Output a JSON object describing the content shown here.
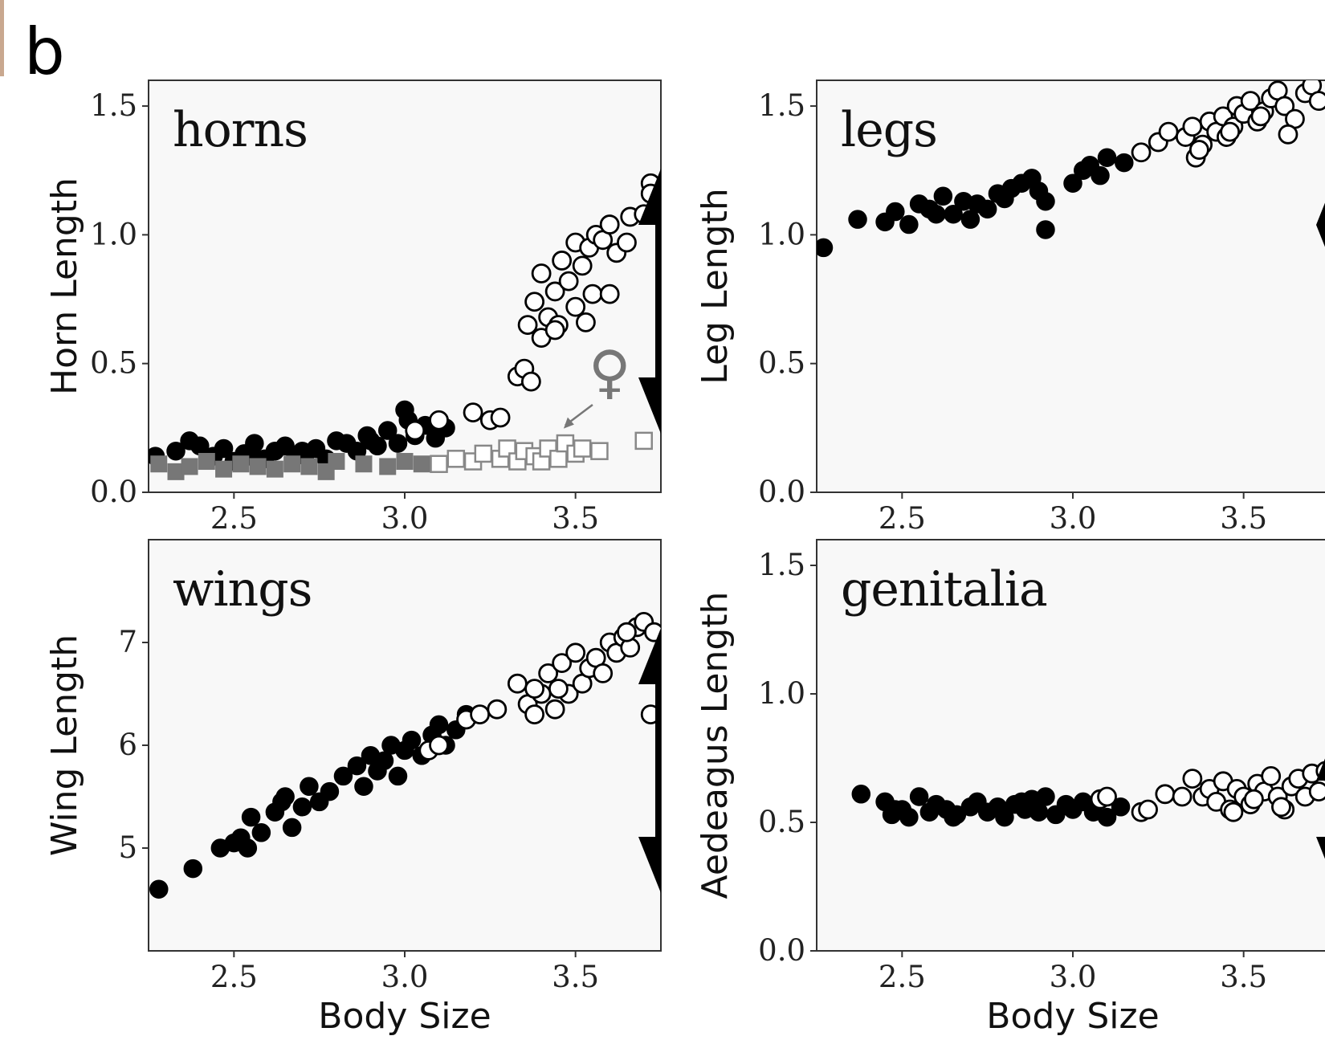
{
  "figure": {
    "panel_label": "b"
  },
  "chart_data": [
    {
      "type": "scatter",
      "title": "horns",
      "xlabel": "",
      "ylabel": "Horn Length",
      "xlim": [
        2.25,
        3.75
      ],
      "ylim": [
        0.0,
        1.6
      ],
      "xticks": [
        "2.5",
        "3.0",
        "3.5"
      ],
      "yticks": [
        "0.0",
        "0.5",
        "1.0",
        "1.5"
      ],
      "xtick_values": [
        2.5,
        3.0,
        3.5
      ],
      "ytick_values": [
        0.0,
        0.5,
        1.0,
        1.5
      ],
      "annotation": "♀",
      "arrow": "double-headed, right edge",
      "series": [
        {
          "marker": "filled-circle",
          "x": [
            2.27,
            2.33,
            2.37,
            2.4,
            2.44,
            2.47,
            2.5,
            2.53,
            2.56,
            2.59,
            2.62,
            2.65,
            2.68,
            2.71,
            2.74,
            2.77,
            2.8,
            2.83,
            2.86,
            2.89,
            2.92,
            2.95,
            2.98,
            3.0,
            3.03,
            3.06,
            3.09,
            3.12,
            2.55,
            2.7,
            2.9,
            3.01
          ],
          "y": [
            0.14,
            0.16,
            0.2,
            0.18,
            0.14,
            0.17,
            0.12,
            0.15,
            0.19,
            0.13,
            0.16,
            0.18,
            0.14,
            0.15,
            0.17,
            0.13,
            0.2,
            0.19,
            0.16,
            0.22,
            0.18,
            0.24,
            0.19,
            0.32,
            0.22,
            0.26,
            0.21,
            0.25,
            0.14,
            0.16,
            0.2,
            0.28
          ]
        },
        {
          "marker": "open-circle",
          "x": [
            3.03,
            3.1,
            3.2,
            3.25,
            3.28,
            3.33,
            3.35,
            3.37,
            3.38,
            3.4,
            3.4,
            3.42,
            3.44,
            3.45,
            3.46,
            3.48,
            3.5,
            3.5,
            3.52,
            3.54,
            3.55,
            3.56,
            3.58,
            3.6,
            3.6,
            3.62,
            3.65,
            3.66,
            3.7,
            3.72,
            3.72,
            3.36,
            3.44,
            3.53
          ],
          "y": [
            0.24,
            0.28,
            0.31,
            0.28,
            0.29,
            0.45,
            0.48,
            0.43,
            0.74,
            0.6,
            0.85,
            0.68,
            0.78,
            0.65,
            0.9,
            0.82,
            0.97,
            0.72,
            0.88,
            0.95,
            0.77,
            1.0,
            0.98,
            0.77,
            1.04,
            0.93,
            0.97,
            1.07,
            1.08,
            1.2,
            1.16,
            0.65,
            0.63,
            0.66
          ]
        },
        {
          "marker": "filled-square",
          "x": [
            2.28,
            2.33,
            2.37,
            2.42,
            2.47,
            2.52,
            2.57,
            2.62,
            2.67,
            2.72,
            2.77,
            2.8,
            2.88,
            2.95,
            3.0,
            3.05
          ],
          "y": [
            0.11,
            0.08,
            0.1,
            0.12,
            0.09,
            0.11,
            0.1,
            0.09,
            0.11,
            0.1,
            0.08,
            0.12,
            0.11,
            0.1,
            0.12,
            0.11
          ]
        },
        {
          "marker": "open-square",
          "x": [
            3.1,
            3.15,
            3.2,
            3.23,
            3.28,
            3.3,
            3.33,
            3.35,
            3.38,
            3.4,
            3.42,
            3.45,
            3.47,
            3.5,
            3.52,
            3.57,
            3.7
          ],
          "y": [
            0.11,
            0.13,
            0.12,
            0.15,
            0.13,
            0.17,
            0.12,
            0.16,
            0.14,
            0.12,
            0.17,
            0.13,
            0.19,
            0.15,
            0.17,
            0.16,
            0.2
          ]
        }
      ]
    },
    {
      "type": "scatter",
      "title": "legs",
      "xlabel": "",
      "ylabel": "Leg Length",
      "xlim": [
        2.25,
        3.75
      ],
      "ylim": [
        0.0,
        1.6
      ],
      "xticks": [
        "2.5",
        "3.0",
        "3.5"
      ],
      "yticks": [
        "0.0",
        "0.5",
        "1.0",
        "1.5"
      ],
      "xtick_values": [
        2.5,
        3.0,
        3.5
      ],
      "ytick_values": [
        0.0,
        0.5,
        1.0,
        1.5
      ],
      "arrow": "double-headed, right edge",
      "series": [
        {
          "marker": "filled-circle",
          "x": [
            2.27,
            2.37,
            2.45,
            2.48,
            2.52,
            2.55,
            2.58,
            2.62,
            2.65,
            2.68,
            2.72,
            2.75,
            2.78,
            2.82,
            2.85,
            2.88,
            2.9,
            2.92,
            2.92,
            3.0,
            3.03,
            3.05,
            3.08,
            3.1,
            3.15,
            2.6,
            2.7,
            2.8
          ],
          "y": [
            0.95,
            1.06,
            1.05,
            1.09,
            1.04,
            1.12,
            1.1,
            1.15,
            1.08,
            1.13,
            1.12,
            1.1,
            1.16,
            1.18,
            1.2,
            1.22,
            1.17,
            1.02,
            1.13,
            1.2,
            1.25,
            1.27,
            1.23,
            1.3,
            1.28,
            1.08,
            1.06,
            1.14
          ]
        },
        {
          "marker": "open-circle",
          "x": [
            3.2,
            3.25,
            3.28,
            3.33,
            3.35,
            3.36,
            3.38,
            3.4,
            3.42,
            3.44,
            3.45,
            3.47,
            3.48,
            3.5,
            3.52,
            3.54,
            3.56,
            3.58,
            3.6,
            3.62,
            3.65,
            3.68,
            3.7,
            3.72,
            3.37,
            3.46,
            3.55,
            3.63
          ],
          "y": [
            1.32,
            1.36,
            1.4,
            1.38,
            1.42,
            1.3,
            1.35,
            1.44,
            1.4,
            1.46,
            1.38,
            1.42,
            1.5,
            1.47,
            1.52,
            1.44,
            1.48,
            1.53,
            1.56,
            1.5,
            1.45,
            1.55,
            1.58,
            1.52,
            1.33,
            1.4,
            1.46,
            1.39
          ]
        }
      ]
    },
    {
      "type": "scatter",
      "title": "wings",
      "xlabel": "Body Size",
      "ylabel": "Wing Length",
      "xlim": [
        2.25,
        3.75
      ],
      "ylim": [
        4.0,
        8.0
      ],
      "xticks": [
        "2.5",
        "3.0",
        "3.5"
      ],
      "yticks": [
        "5",
        "6",
        "7"
      ],
      "xtick_values": [
        2.5,
        3.0,
        3.5
      ],
      "ytick_values": [
        5,
        6,
        7
      ],
      "arrow": "double-headed, right edge",
      "series": [
        {
          "marker": "filled-circle",
          "x": [
            2.28,
            2.38,
            2.46,
            2.5,
            2.52,
            2.55,
            2.58,
            2.62,
            2.65,
            2.67,
            2.7,
            2.72,
            2.75,
            2.78,
            2.82,
            2.86,
            2.88,
            2.9,
            2.92,
            2.94,
            2.96,
            2.98,
            3.0,
            3.02,
            3.05,
            3.08,
            3.1,
            3.12,
            3.15,
            3.18,
            2.54,
            2.64
          ],
          "y": [
            4.6,
            4.8,
            5.0,
            5.05,
            5.1,
            5.3,
            5.15,
            5.35,
            5.5,
            5.2,
            5.4,
            5.6,
            5.45,
            5.55,
            5.7,
            5.8,
            5.6,
            5.9,
            5.75,
            5.85,
            6.0,
            5.7,
            5.95,
            6.05,
            5.9,
            6.1,
            6.2,
            6.0,
            6.15,
            6.3,
            5.0,
            5.45
          ]
        },
        {
          "marker": "open-circle",
          "x": [
            3.07,
            3.1,
            3.18,
            3.22,
            3.27,
            3.33,
            3.36,
            3.38,
            3.4,
            3.42,
            3.44,
            3.46,
            3.48,
            3.5,
            3.52,
            3.54,
            3.56,
            3.58,
            3.6,
            3.62,
            3.64,
            3.66,
            3.68,
            3.7,
            3.72,
            3.73,
            3.38,
            3.45,
            3.65
          ],
          "y": [
            5.95,
            6.0,
            6.25,
            6.3,
            6.35,
            6.6,
            6.4,
            6.3,
            6.5,
            6.7,
            6.35,
            6.8,
            6.5,
            6.9,
            6.6,
            6.75,
            6.85,
            6.7,
            7.0,
            6.9,
            7.05,
            6.95,
            7.15,
            7.2,
            6.3,
            7.1,
            6.55,
            6.55,
            7.1
          ]
        }
      ]
    },
    {
      "type": "scatter",
      "title": "genitalia",
      "xlabel": "Body Size",
      "ylabel": "Aedeagus Length",
      "xlim": [
        2.25,
        3.75
      ],
      "ylim": [
        0.0,
        1.6
      ],
      "xticks": [
        "2.5",
        "3.0",
        "3.5"
      ],
      "yticks": [
        "0.0",
        "0.5",
        "1.0",
        "1.5"
      ],
      "xtick_values": [
        2.5,
        3.0,
        3.5
      ],
      "ytick_values": [
        0.0,
        0.5,
        1.0,
        1.5
      ],
      "arrow": "double-headed, right edge",
      "series": [
        {
          "marker": "filled-circle",
          "x": [
            2.38,
            2.45,
            2.47,
            2.5,
            2.52,
            2.55,
            2.58,
            2.6,
            2.63,
            2.66,
            2.7,
            2.72,
            2.75,
            2.78,
            2.8,
            2.83,
            2.86,
            2.88,
            2.9,
            2.92,
            2.95,
            2.98,
            3.0,
            3.03,
            3.06,
            3.1,
            3.14,
            2.48,
            2.65,
            2.85
          ],
          "y": [
            0.61,
            0.58,
            0.53,
            0.55,
            0.52,
            0.6,
            0.54,
            0.57,
            0.55,
            0.53,
            0.56,
            0.58,
            0.54,
            0.56,
            0.52,
            0.57,
            0.55,
            0.59,
            0.54,
            0.6,
            0.53,
            0.57,
            0.55,
            0.58,
            0.54,
            0.52,
            0.56,
            0.55,
            0.52,
            0.58
          ]
        },
        {
          "marker": "open-circle",
          "x": [
            3.08,
            3.1,
            3.2,
            3.22,
            3.27,
            3.32,
            3.35,
            3.38,
            3.4,
            3.42,
            3.44,
            3.46,
            3.48,
            3.5,
            3.52,
            3.54,
            3.56,
            3.58,
            3.6,
            3.62,
            3.64,
            3.66,
            3.68,
            3.7,
            3.72,
            3.74,
            3.47,
            3.53,
            3.61
          ],
          "y": [
            0.59,
            0.6,
            0.54,
            0.55,
            0.61,
            0.6,
            0.67,
            0.6,
            0.63,
            0.58,
            0.66,
            0.55,
            0.63,
            0.6,
            0.57,
            0.65,
            0.62,
            0.68,
            0.6,
            0.55,
            0.64,
            0.67,
            0.6,
            0.69,
            0.62,
            0.7,
            0.54,
            0.59,
            0.56
          ]
        }
      ]
    }
  ]
}
